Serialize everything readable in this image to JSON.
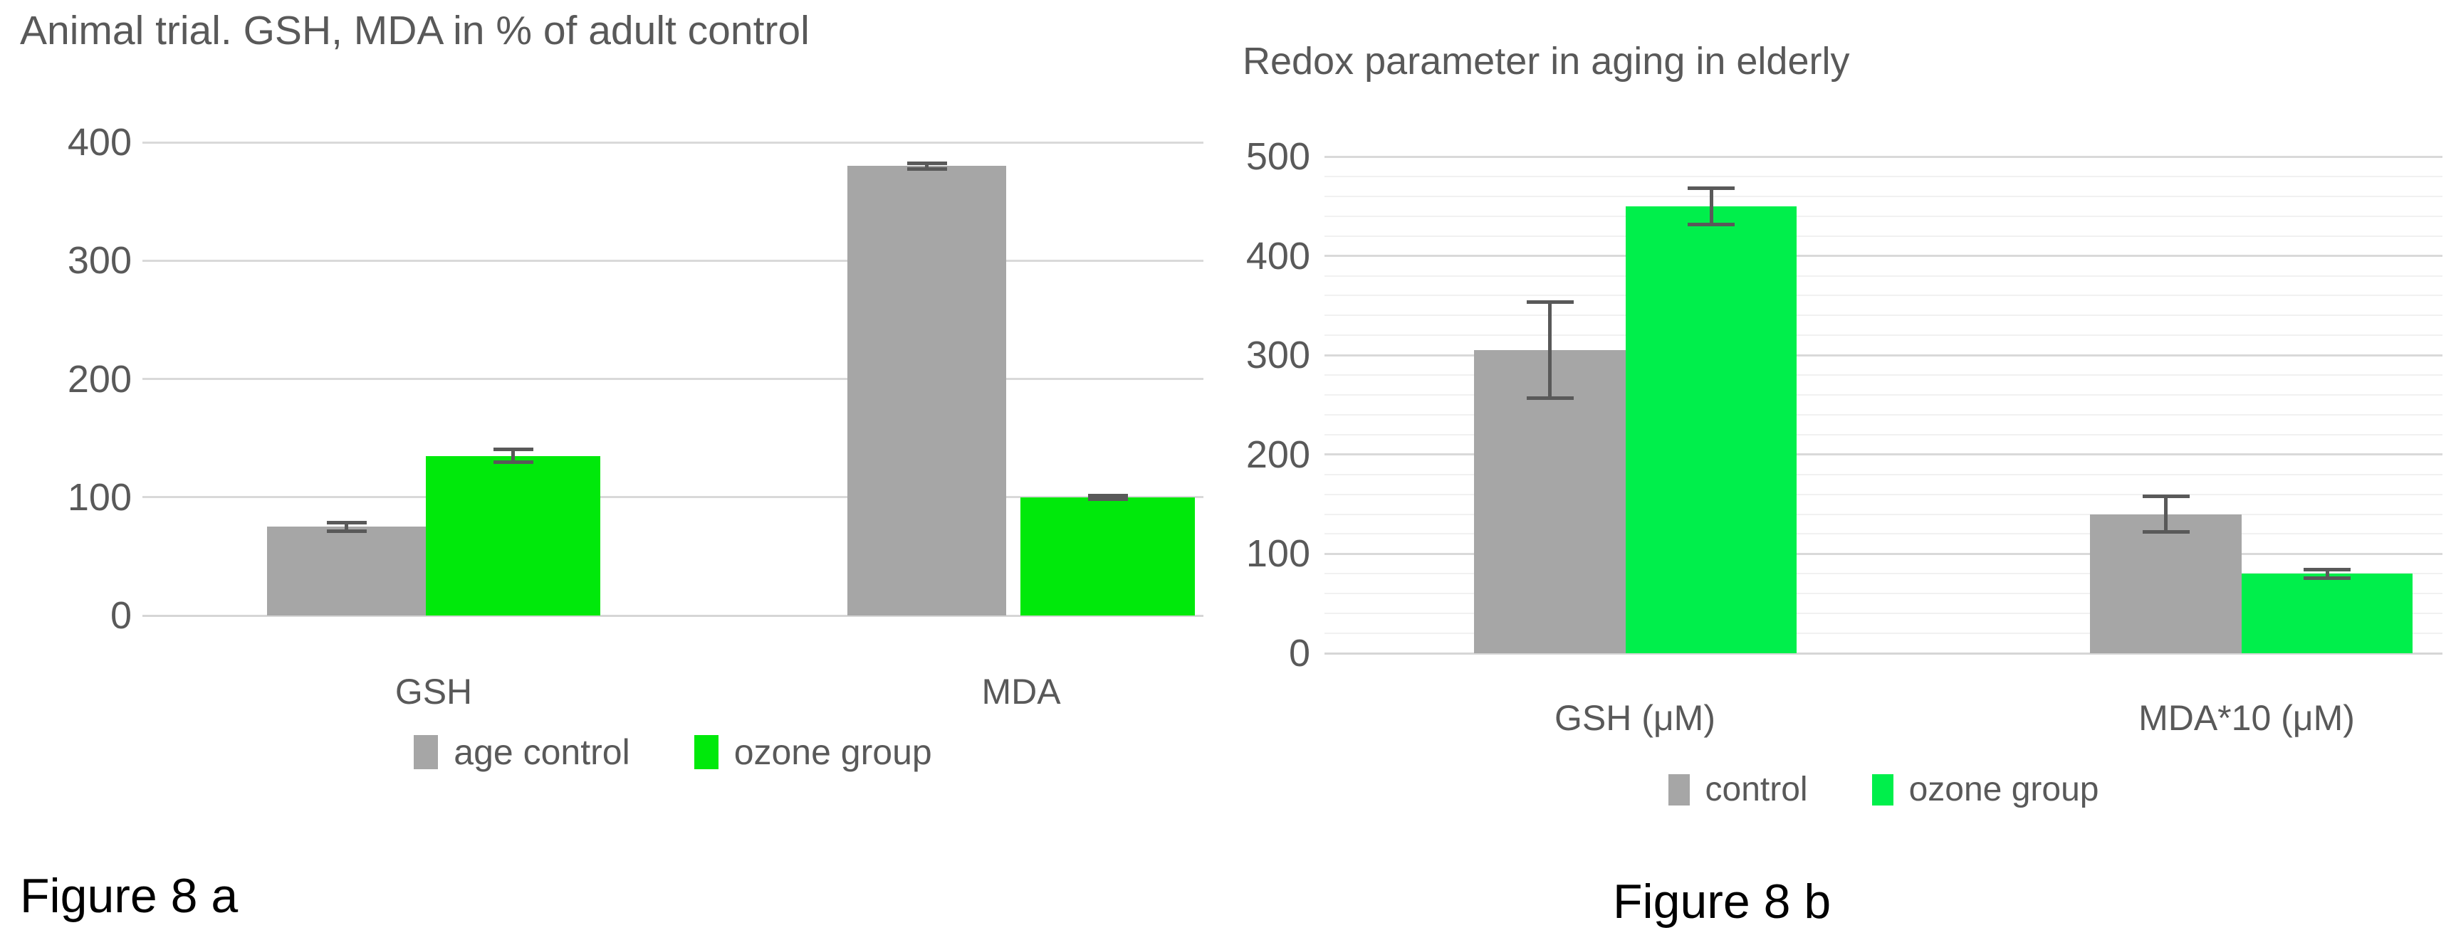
{
  "captions": {
    "left": "Figure 8 a",
    "right": "Figure 8 b"
  },
  "colors": {
    "control_gray": "#a6a6a6",
    "ozone_green_left": "#00e90b",
    "ozone_green_right": "#00ef4b",
    "text_gray": "#595959",
    "grid_major": "#d9d9d9",
    "grid_minor": "#f1f1f1"
  },
  "chart_data": [
    {
      "type": "bar",
      "title": "Animal trial. GSH, MDA in % of adult control",
      "categories": [
        "GSH",
        "MDA"
      ],
      "series": [
        {
          "name": "age control",
          "color": "#a6a6a6",
          "values": [
            75,
            380
          ],
          "errors": [
            5,
            4
          ]
        },
        {
          "name": "ozone group",
          "color": "#00e90b",
          "values": [
            135,
            100
          ],
          "errors": [
            7,
            3
          ]
        }
      ],
      "ylim": [
        0,
        400
      ],
      "y_ticks": [
        0,
        100,
        200,
        300,
        400
      ],
      "y_major_step": 100,
      "y_minor_step": null,
      "grid": "horizontal-major",
      "legend_position": "bottom"
    },
    {
      "type": "bar",
      "title": "Redox parameter in aging in elderly",
      "categories": [
        "GSH (μM)",
        "MDA*10 (μM)"
      ],
      "series": [
        {
          "name": "control",
          "color": "#a6a6a6",
          "values": [
            305,
            140
          ],
          "errors": [
            50,
            20
          ]
        },
        {
          "name": "ozone group",
          "color": "#00ef4b",
          "values": [
            450,
            80
          ],
          "errors": [
            20,
            6
          ]
        }
      ],
      "ylim": [
        0,
        500
      ],
      "y_ticks": [
        0,
        100,
        200,
        300,
        400,
        500
      ],
      "y_major_step": 100,
      "y_minor_step": 20,
      "grid": "horizontal-major-and-minor",
      "legend_position": "bottom"
    }
  ]
}
